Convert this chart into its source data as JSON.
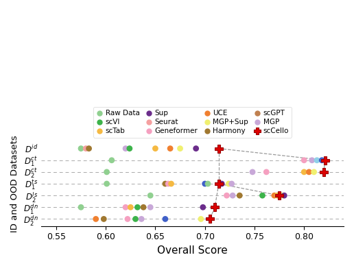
{
  "datasets": [
    "$D^{id}$",
    "$D_1^{ct}$",
    "$D_2^{ct}$",
    "$D_1^{ts}$",
    "$D_2^{ls}$",
    "$D_1^{dn}$",
    "$D_2^{dn}$"
  ],
  "xlim": [
    0.535,
    0.84
  ],
  "xticks": [
    0.55,
    0.6,
    0.65,
    0.7,
    0.75,
    0.8
  ],
  "xlabel": "Overall Score",
  "ylabel": "ID and OOD Datasets",
  "background_color": "#ffffff",
  "legend_items": [
    [
      "Raw Data",
      "#90d090"
    ],
    [
      "scVI",
      "#3cb34a"
    ],
    [
      "scTab",
      "#f5b942"
    ],
    [
      "Sup",
      "#6b2d8b"
    ],
    [
      "Seurat",
      "#f5a0a0"
    ],
    [
      "Geneformer",
      "#f5a0c0"
    ],
    [
      "UCE",
      "#f08030"
    ],
    [
      "MGP+Sup",
      "#f0f070"
    ],
    [
      "Harmony",
      "#a07830"
    ],
    [
      "scGPT",
      "#c08050"
    ],
    [
      "MGP",
      "#c8a8d8"
    ],
    [
      "scCello",
      "#dd0000"
    ]
  ],
  "plot_data": {
    "$D^{id}$": [
      [
        0.575,
        "#90d090",
        "o"
      ],
      [
        0.58,
        "#f5a0a0",
        "o"
      ],
      [
        0.583,
        "#a07830",
        "o"
      ],
      [
        0.62,
        "#c8a8d8",
        "o"
      ],
      [
        0.624,
        "#3cb34a",
        "o"
      ],
      [
        0.65,
        "#f5b942",
        "o"
      ],
      [
        0.665,
        "#f08030",
        "o"
      ],
      [
        0.675,
        "#f0f070",
        "o"
      ],
      [
        0.691,
        "#6b2d8b",
        "o"
      ],
      [
        0.714,
        "#dd0000",
        "P"
      ]
    ],
    "$D_1^{ct}$": [
      [
        0.606,
        "#90d090",
        "o"
      ],
      [
        0.8,
        "#f5a0c0",
        "o"
      ],
      [
        0.808,
        "#c8a8d8",
        "o"
      ],
      [
        0.813,
        "#90d0e8",
        "o"
      ],
      [
        0.818,
        "#4060c8",
        "o"
      ],
      [
        0.821,
        "#dd0000",
        "P"
      ]
    ],
    "$D_2^{ct}$": [
      [
        0.601,
        "#90d090",
        "o"
      ],
      [
        0.748,
        "#c8a8d8",
        "o"
      ],
      [
        0.762,
        "#f5a0c0",
        "o"
      ],
      [
        0.8,
        "#f5b942",
        "o"
      ],
      [
        0.805,
        "#f08030",
        "o"
      ],
      [
        0.81,
        "#f0f070",
        "o"
      ],
      [
        0.82,
        "#dd0000",
        "P"
      ]
    ],
    "$D_1^{ts}$": [
      [
        0.601,
        "#90d090",
        "o"
      ],
      [
        0.66,
        "#a07830",
        "o"
      ],
      [
        0.663,
        "#f5a0c0",
        "o"
      ],
      [
        0.666,
        "#f5b942",
        "o"
      ],
      [
        0.7,
        "#4060c8",
        "o"
      ],
      [
        0.703,
        "#90d090",
        "o"
      ],
      [
        0.714,
        "#dd0000",
        "P"
      ],
      [
        0.717,
        "#6b2d8b",
        "o"
      ],
      [
        0.724,
        "#f0f070",
        "o"
      ],
      [
        0.727,
        "#c8a8d8",
        "o"
      ]
    ],
    "$D_2^{ls}$": [
      [
        0.645,
        "#90d090",
        "o"
      ],
      [
        0.722,
        "#f5a0c0",
        "o"
      ],
      [
        0.728,
        "#c8a8d8",
        "o"
      ],
      [
        0.735,
        "#a07830",
        "o"
      ],
      [
        0.758,
        "#3cb34a",
        "o"
      ],
      [
        0.77,
        "#f08030",
        "o"
      ],
      [
        0.773,
        "#f5b942",
        "o"
      ],
      [
        0.775,
        "#dd0000",
        "P"
      ],
      [
        0.778,
        "#f0f070",
        "o"
      ],
      [
        0.78,
        "#6b2d8b",
        "o"
      ]
    ],
    "$D_1^{dn}$": [
      [
        0.575,
        "#90d090",
        "o"
      ],
      [
        0.62,
        "#f5a0c0",
        "o"
      ],
      [
        0.625,
        "#f5b942",
        "o"
      ],
      [
        0.632,
        "#3cb34a",
        "o"
      ],
      [
        0.638,
        "#a07830",
        "o"
      ],
      [
        0.645,
        "#c8a8d8",
        "o"
      ],
      [
        0.698,
        "#6b2d8b",
        "o"
      ],
      [
        0.71,
        "#dd0000",
        "P"
      ]
    ],
    "$D_2^{dn}$": [
      [
        0.59,
        "#f08030",
        "o"
      ],
      [
        0.598,
        "#a07830",
        "o"
      ],
      [
        0.622,
        "#f5a0c0",
        "o"
      ],
      [
        0.63,
        "#3cb34a",
        "o"
      ],
      [
        0.636,
        "#c8a8d8",
        "o"
      ],
      [
        0.66,
        "#4060c8",
        "o"
      ],
      [
        0.696,
        "#f0f070",
        "o"
      ],
      [
        0.705,
        "#dd0000",
        "P"
      ]
    ]
  },
  "scCello_x": {
    "$D^{id}$": 0.714,
    "$D_1^{ct}$": 0.821,
    "$D_2^{ct}$": 0.82,
    "$D_1^{ts}$": 0.714,
    "$D_2^{ls}$": 0.775,
    "$D_1^{dn}$": 0.71,
    "$D_2^{dn}$": 0.705
  },
  "line_connections": [
    [
      "$D^{id}$",
      "$D_1^{ct}$"
    ],
    [
      "$D_1^{ct}$",
      "$D_2^{ct}$"
    ],
    [
      "$D^{id}$",
      "$D_1^{ts}$"
    ],
    [
      "$D_1^{ts}$",
      "$D_2^{ls}$"
    ],
    [
      "$D_1^{ts}$",
      "$D_1^{dn}$"
    ],
    [
      "$D_1^{dn}$",
      "$D_2^{dn}$"
    ]
  ]
}
